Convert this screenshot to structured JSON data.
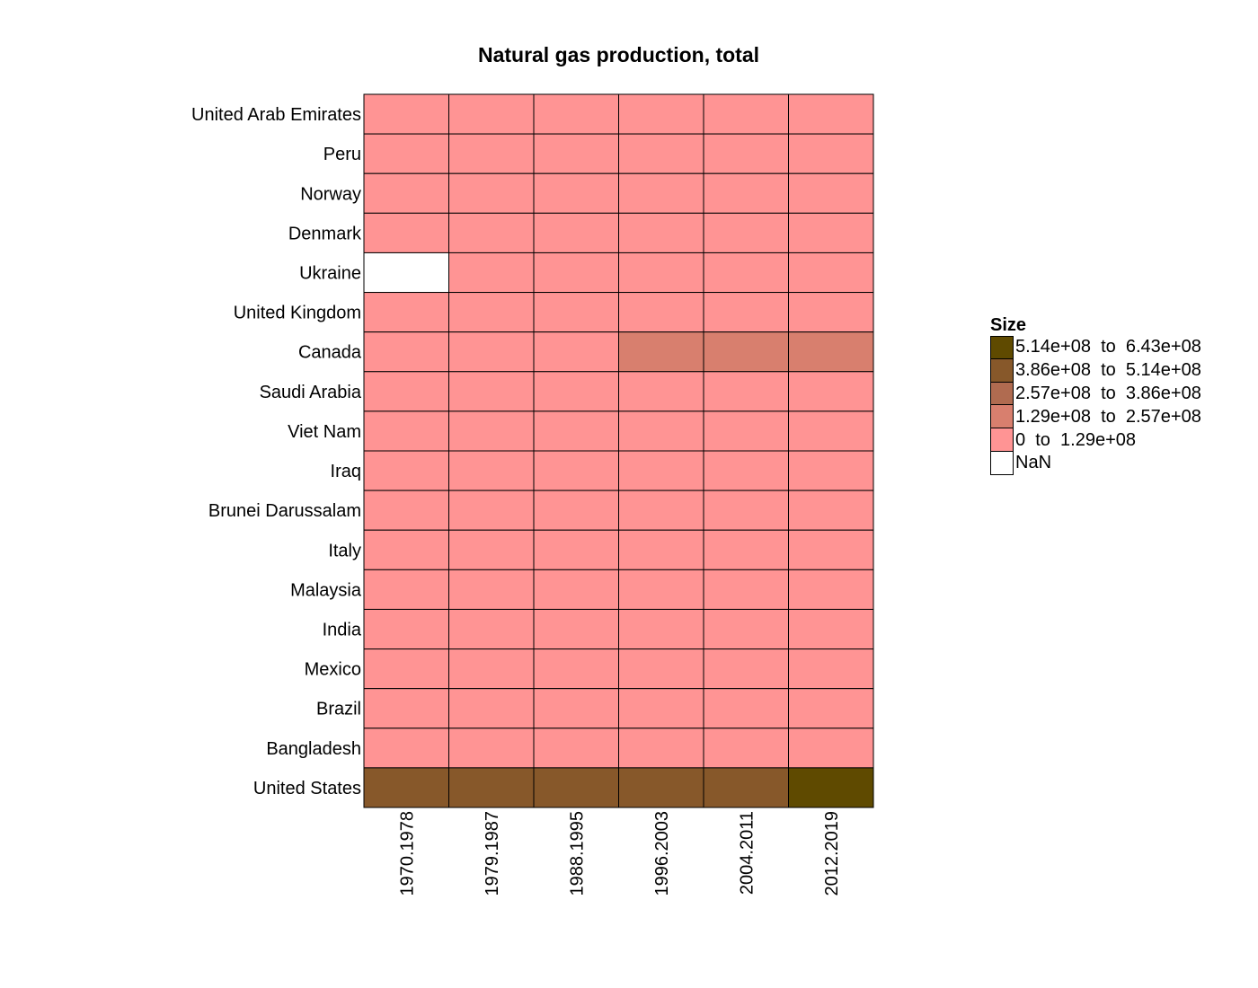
{
  "chart_data": {
    "type": "heatmap",
    "title": "Natural gas production, total",
    "columns": [
      "1970.1978",
      "1979.1987",
      "1988.1995",
      "1996.2003",
      "2004.2011",
      "2012.2019"
    ],
    "rows": [
      "United Arab Emirates",
      "Peru",
      "Norway",
      "Denmark",
      "Ukraine",
      "United Kingdom",
      "Canada",
      "Saudi Arabia",
      "Viet Nam",
      "Iraq",
      "Brunei Darussalam",
      "Italy",
      "Malaysia",
      "India",
      "Mexico",
      "Brazil",
      "Bangladesh",
      "United States"
    ],
    "bin_index": [
      [
        0,
        0,
        0,
        0,
        0,
        0
      ],
      [
        0,
        0,
        0,
        0,
        0,
        0
      ],
      [
        0,
        0,
        0,
        0,
        0,
        0
      ],
      [
        0,
        0,
        0,
        0,
        0,
        0
      ],
      [
        -1,
        0,
        0,
        0,
        0,
        0
      ],
      [
        0,
        0,
        0,
        0,
        0,
        0
      ],
      [
        0,
        0,
        0,
        1,
        1,
        1
      ],
      [
        0,
        0,
        0,
        0,
        0,
        0
      ],
      [
        0,
        0,
        0,
        0,
        0,
        0
      ],
      [
        0,
        0,
        0,
        0,
        0,
        0
      ],
      [
        0,
        0,
        0,
        0,
        0,
        0
      ],
      [
        0,
        0,
        0,
        0,
        0,
        0
      ],
      [
        0,
        0,
        0,
        0,
        0,
        0
      ],
      [
        0,
        0,
        0,
        0,
        0,
        0
      ],
      [
        0,
        0,
        0,
        0,
        0,
        0
      ],
      [
        0,
        0,
        0,
        0,
        0,
        0
      ],
      [
        0,
        0,
        0,
        0,
        0,
        0
      ],
      [
        3,
        3,
        3,
        3,
        3,
        4
      ]
    ],
    "legend": {
      "title": "Size",
      "bins": [
        {
          "label": "0  to  1.29e+08",
          "color": "#ff9494"
        },
        {
          "label": "1.29e+08  to  2.57e+08",
          "color": "#d87f6e"
        },
        {
          "label": "2.57e+08  to  3.86e+08",
          "color": "#b06b50"
        },
        {
          "label": "3.86e+08  to  5.14e+08",
          "color": "#87582a"
        },
        {
          "label": "5.14e+08  to  6.43e+08",
          "color": "#5f4a00"
        }
      ],
      "nan": {
        "label": "NaN",
        "color": "#ffffff"
      }
    }
  }
}
